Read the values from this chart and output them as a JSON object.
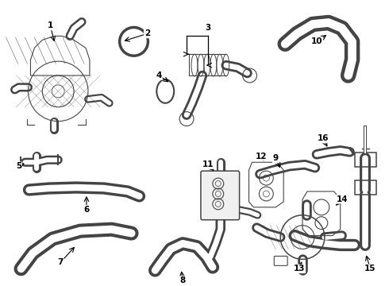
{
  "bg_color": "#ffffff",
  "line_color": "#444444",
  "text_color": "#000000",
  "label_fontsize": 7.5,
  "fig_width": 4.9,
  "fig_height": 3.6,
  "dpi": 100
}
